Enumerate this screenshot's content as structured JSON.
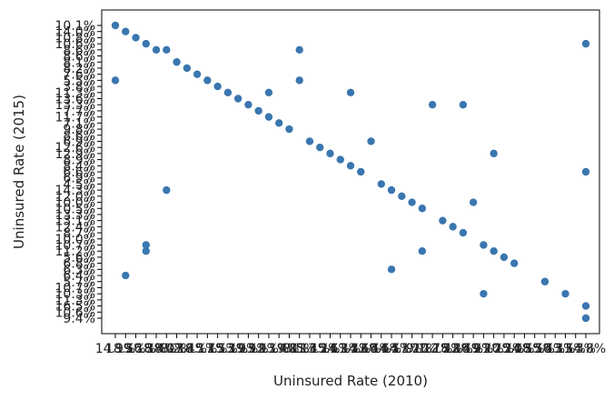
{
  "chart_data": {
    "type": "scatter",
    "title": "",
    "xlabel": "Uninsured Rate (2010)",
    "ylabel": "Uninsured Rate (2015)",
    "x_categories": [
      "14.9%",
      "18.5%",
      "19.1%",
      "16.3%",
      "18.4%",
      "18.0%",
      "8.2%",
      "17.4%",
      "18.1%",
      "15.7%",
      "17.5%",
      "15.3%",
      "13.9%",
      "19.9%",
      "23.9%",
      "12.1%",
      "13.4%",
      "19.8%",
      "8.5%",
      "11.4%",
      "13.2%",
      "15.6%",
      "14.3%",
      "11.3%",
      "14.6%",
      "12.4%",
      "16.6%",
      "14.5%",
      "14.1%",
      "17.2%",
      "9.1%",
      "10.7%",
      "12.5%",
      "18.8%",
      "22.4%",
      "16.9%",
      "19.2%",
      "21.2%",
      "10.2%",
      "15.0%",
      "14.5%",
      "18.5%",
      "15.4%",
      "16.3%",
      "13.5%",
      "11.3%",
      "14.8%"
    ],
    "y_categories": [
      "10.1%",
      "14.0%",
      "10.8%",
      "10.6%",
      "8.6%",
      "8.6%",
      "8.1%",
      "8.2%",
      "7.6%",
      "5.5%",
      "3.8%",
      "11.3%",
      "13.6%",
      "13.3%",
      "7.7%",
      "11.7%",
      "7.1%",
      "9.8%",
      "8.6%",
      "6.9%",
      "12.6%",
      "12.9%",
      "8.9%",
      "8.4%",
      "6.6%",
      "6.9%",
      "4.5%",
      "14.3%",
      "12.0%",
      "10.0%",
      "10.5%",
      "13.3%",
      "13.1%",
      "12.4%",
      "8.7%",
      "10.0%",
      "10.7%",
      "11.2%",
      "5.6%",
      "6.8%",
      "6.3%",
      "6.4%",
      "5.7%",
      "10.7%",
      "10.3%",
      "11.3%",
      "16.5%",
      "10.6%",
      "9.4%"
    ],
    "points": [
      {
        "x": "14.9%",
        "y": "10.1%"
      },
      {
        "x": "18.5%",
        "y": "14.0%"
      },
      {
        "x": "19.1%",
        "y": "10.8%"
      },
      {
        "x": "16.3%",
        "y": "10.6%"
      },
      {
        "x": "18.4%",
        "y": "8.6%"
      },
      {
        "x": "18.0%",
        "y": "8.6%"
      },
      {
        "x": "8.2%",
        "y": "8.1%"
      },
      {
        "x": "17.4%",
        "y": "8.2%"
      },
      {
        "x": "18.1%",
        "y": "7.6%"
      },
      {
        "x": "15.7%",
        "y": "5.5%"
      },
      {
        "x": "17.5%",
        "y": "3.8%"
      },
      {
        "x": "15.3%",
        "y": "11.3%"
      },
      {
        "x": "13.9%",
        "y": "13.6%"
      },
      {
        "x": "19.9%",
        "y": "13.3%"
      },
      {
        "x": "23.9%",
        "y": "7.7%"
      },
      {
        "x": "12.1%",
        "y": "11.7%"
      },
      {
        "x": "13.4%",
        "y": "7.1%"
      },
      {
        "x": "19.8%",
        "y": "9.8%"
      },
      {
        "x": "8.5%",
        "y": "8.6%"
      },
      {
        "x": "11.4%",
        "y": "6.9%"
      },
      {
        "x": "13.2%",
        "y": "12.6%"
      },
      {
        "x": "15.6%",
        "y": "12.9%"
      },
      {
        "x": "14.3%",
        "y": "8.9%"
      },
      {
        "x": "11.3%",
        "y": "8.4%"
      },
      {
        "x": "14.6%",
        "y": "6.6%"
      },
      {
        "x": "12.4%",
        "y": "6.9%"
      },
      {
        "x": "16.6%",
        "y": "4.5%"
      },
      {
        "x": "14.5%",
        "y": "14.3%"
      },
      {
        "x": "14.1%",
        "y": "12.0%"
      },
      {
        "x": "17.2%",
        "y": "10.0%"
      },
      {
        "x": "9.1%",
        "y": "10.5%"
      },
      {
        "x": "10.7%",
        "y": "13.3%"
      },
      {
        "x": "12.5%",
        "y": "13.1%"
      },
      {
        "x": "18.8%",
        "y": "12.4%"
      },
      {
        "x": "22.4%",
        "y": "8.7%"
      },
      {
        "x": "16.9%",
        "y": "10.0%"
      },
      {
        "x": "19.2%",
        "y": "10.7%"
      },
      {
        "x": "21.2%",
        "y": "11.2%"
      },
      {
        "x": "10.2%",
        "y": "5.6%"
      },
      {
        "x": "15.0%",
        "y": "6.8%"
      },
      {
        "x": "14.5%",
        "y": "6.3%"
      },
      {
        "x": "18.5%",
        "y": "6.4%"
      },
      {
        "x": "15.4%",
        "y": "5.7%"
      },
      {
        "x": "16.3%",
        "y": "10.7%"
      },
      {
        "x": "13.5%",
        "y": "10.3%"
      },
      {
        "x": "11.3%",
        "y": "11.3%"
      },
      {
        "x": "14.8%",
        "y": "16.5%"
      },
      {
        "x": "14.8%",
        "y": "10.6%"
      },
      {
        "x": "14.8%",
        "y": "9.4%"
      },
      {
        "x": "14.9%",
        "y": "5.5%"
      },
      {
        "x": "16.3%",
        "y": "11.2%"
      },
      {
        "x": "18.0%",
        "y": "14.3%"
      },
      {
        "x": "8.5%",
        "y": "5.5%"
      },
      {
        "x": "19.2%",
        "y": "10.3%"
      },
      {
        "x": "9.1%",
        "y": "11.2%"
      },
      {
        "x": "12.1%",
        "y": "11.3%"
      },
      {
        "x": "22.4%",
        "y": "13.3%"
      },
      {
        "x": "21.2%",
        "y": "12.9%"
      },
      {
        "x": "14.8%",
        "y": "6.6%"
      }
    ],
    "color": "#3a76af",
    "grid": false
  }
}
